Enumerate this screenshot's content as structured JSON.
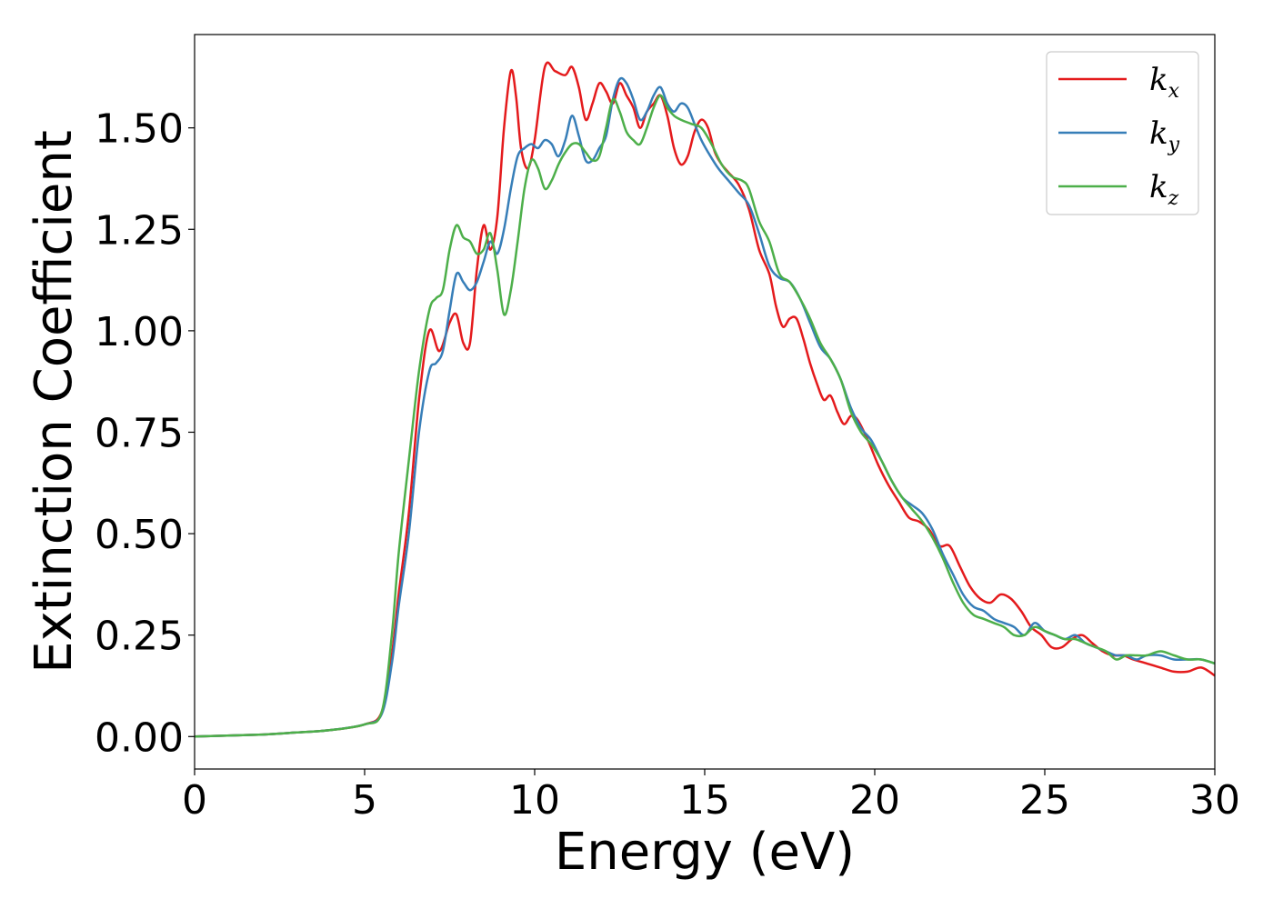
{
  "chart_data": {
    "type": "line",
    "xlabel": "Energy (eV)",
    "ylabel": "Extinction Coefficient",
    "xlim": [
      0,
      30
    ],
    "ylim": [
      -0.08,
      1.73
    ],
    "x_ticks": [
      "0",
      "5",
      "10",
      "15",
      "20",
      "25",
      "30"
    ],
    "y_ticks": [
      "0.00",
      "0.25",
      "0.50",
      "0.75",
      "1.00",
      "1.25",
      "1.50"
    ],
    "grid": false,
    "legend_position": "top-right",
    "series": [
      {
        "name": "k_x",
        "label_base": "k",
        "label_sub": "x",
        "color": "#e41a1c",
        "points": [
          [
            0,
            0.0
          ],
          [
            2,
            0.005
          ],
          [
            3,
            0.01
          ],
          [
            4,
            0.016
          ],
          [
            5,
            0.03
          ],
          [
            5.5,
            0.06
          ],
          [
            5.8,
            0.2
          ],
          [
            6,
            0.35
          ],
          [
            6.3,
            0.55
          ],
          [
            6.6,
            0.83
          ],
          [
            6.9,
            1.0
          ],
          [
            7.2,
            0.95
          ],
          [
            7.5,
            1.02
          ],
          [
            7.7,
            1.04
          ],
          [
            7.9,
            0.97
          ],
          [
            8.1,
            0.97
          ],
          [
            8.3,
            1.15
          ],
          [
            8.5,
            1.26
          ],
          [
            8.7,
            1.2
          ],
          [
            8.9,
            1.28
          ],
          [
            9.1,
            1.5
          ],
          [
            9.3,
            1.64
          ],
          [
            9.45,
            1.58
          ],
          [
            9.6,
            1.45
          ],
          [
            9.8,
            1.4
          ],
          [
            10,
            1.47
          ],
          [
            10.3,
            1.65
          ],
          [
            10.6,
            1.64
          ],
          [
            10.9,
            1.63
          ],
          [
            11.1,
            1.65
          ],
          [
            11.3,
            1.6
          ],
          [
            11.5,
            1.52
          ],
          [
            11.7,
            1.56
          ],
          [
            11.9,
            1.61
          ],
          [
            12.1,
            1.59
          ],
          [
            12.3,
            1.56
          ],
          [
            12.5,
            1.61
          ],
          [
            12.7,
            1.58
          ],
          [
            12.9,
            1.55
          ],
          [
            13.1,
            1.5
          ],
          [
            13.3,
            1.54
          ],
          [
            13.5,
            1.56
          ],
          [
            13.7,
            1.58
          ],
          [
            13.9,
            1.53
          ],
          [
            14.1,
            1.45
          ],
          [
            14.3,
            1.41
          ],
          [
            14.5,
            1.43
          ],
          [
            14.7,
            1.49
          ],
          [
            14.9,
            1.52
          ],
          [
            15.1,
            1.5
          ],
          [
            15.3,
            1.44
          ],
          [
            15.5,
            1.41
          ],
          [
            15.7,
            1.39
          ],
          [
            16,
            1.36
          ],
          [
            16.3,
            1.3
          ],
          [
            16.6,
            1.2
          ],
          [
            16.9,
            1.14
          ],
          [
            17.1,
            1.06
          ],
          [
            17.3,
            1.01
          ],
          [
            17.5,
            1.03
          ],
          [
            17.7,
            1.03
          ],
          [
            17.9,
            0.98
          ],
          [
            18.1,
            0.92
          ],
          [
            18.3,
            0.87
          ],
          [
            18.5,
            0.83
          ],
          [
            18.7,
            0.84
          ],
          [
            18.9,
            0.8
          ],
          [
            19.1,
            0.77
          ],
          [
            19.3,
            0.79
          ],
          [
            19.5,
            0.78
          ],
          [
            19.8,
            0.73
          ],
          [
            20.1,
            0.67
          ],
          [
            20.4,
            0.62
          ],
          [
            20.7,
            0.58
          ],
          [
            21,
            0.54
          ],
          [
            21.3,
            0.53
          ],
          [
            21.6,
            0.51
          ],
          [
            21.9,
            0.47
          ],
          [
            22.2,
            0.47
          ],
          [
            22.5,
            0.42
          ],
          [
            22.8,
            0.37
          ],
          [
            23.1,
            0.34
          ],
          [
            23.4,
            0.33
          ],
          [
            23.7,
            0.35
          ],
          [
            24,
            0.34
          ],
          [
            24.3,
            0.31
          ],
          [
            24.6,
            0.27
          ],
          [
            24.9,
            0.25
          ],
          [
            25.2,
            0.22
          ],
          [
            25.5,
            0.22
          ],
          [
            25.8,
            0.24
          ],
          [
            26.1,
            0.25
          ],
          [
            26.4,
            0.23
          ],
          [
            26.7,
            0.21
          ],
          [
            27,
            0.2
          ],
          [
            27.3,
            0.2
          ],
          [
            27.6,
            0.19
          ],
          [
            28,
            0.18
          ],
          [
            28.4,
            0.17
          ],
          [
            28.8,
            0.16
          ],
          [
            29.2,
            0.16
          ],
          [
            29.6,
            0.17
          ],
          [
            30,
            0.15
          ]
        ]
      },
      {
        "name": "k_y",
        "label_base": "k",
        "label_sub": "y",
        "color": "#377eb8",
        "points": [
          [
            0,
            0.0
          ],
          [
            2,
            0.005
          ],
          [
            3,
            0.01
          ],
          [
            4,
            0.016
          ],
          [
            5,
            0.03
          ],
          [
            5.5,
            0.055
          ],
          [
            5.8,
            0.18
          ],
          [
            6,
            0.32
          ],
          [
            6.3,
            0.5
          ],
          [
            6.6,
            0.75
          ],
          [
            6.9,
            0.9
          ],
          [
            7.1,
            0.92
          ],
          [
            7.3,
            0.95
          ],
          [
            7.5,
            1.05
          ],
          [
            7.7,
            1.14
          ],
          [
            7.9,
            1.12
          ],
          [
            8.1,
            1.1
          ],
          [
            8.3,
            1.12
          ],
          [
            8.5,
            1.17
          ],
          [
            8.7,
            1.22
          ],
          [
            8.9,
            1.19
          ],
          [
            9.1,
            1.25
          ],
          [
            9.3,
            1.35
          ],
          [
            9.5,
            1.43
          ],
          [
            9.7,
            1.45
          ],
          [
            9.9,
            1.46
          ],
          [
            10.1,
            1.45
          ],
          [
            10.3,
            1.47
          ],
          [
            10.5,
            1.46
          ],
          [
            10.7,
            1.43
          ],
          [
            10.9,
            1.47
          ],
          [
            11.1,
            1.53
          ],
          [
            11.3,
            1.48
          ],
          [
            11.5,
            1.42
          ],
          [
            11.7,
            1.42
          ],
          [
            11.9,
            1.45
          ],
          [
            12.1,
            1.48
          ],
          [
            12.3,
            1.57
          ],
          [
            12.5,
            1.62
          ],
          [
            12.7,
            1.61
          ],
          [
            12.9,
            1.57
          ],
          [
            13.1,
            1.52
          ],
          [
            13.3,
            1.54
          ],
          [
            13.5,
            1.58
          ],
          [
            13.7,
            1.6
          ],
          [
            13.9,
            1.56
          ],
          [
            14.1,
            1.54
          ],
          [
            14.3,
            1.56
          ],
          [
            14.5,
            1.55
          ],
          [
            14.7,
            1.51
          ],
          [
            14.9,
            1.47
          ],
          [
            15.1,
            1.44
          ],
          [
            15.4,
            1.4
          ],
          [
            15.7,
            1.37
          ],
          [
            16,
            1.34
          ],
          [
            16.3,
            1.31
          ],
          [
            16.6,
            1.24
          ],
          [
            16.9,
            1.16
          ],
          [
            17.2,
            1.13
          ],
          [
            17.5,
            1.12
          ],
          [
            17.8,
            1.08
          ],
          [
            18.1,
            1.02
          ],
          [
            18.4,
            0.96
          ],
          [
            18.7,
            0.93
          ],
          [
            19,
            0.88
          ],
          [
            19.3,
            0.81
          ],
          [
            19.6,
            0.76
          ],
          [
            19.9,
            0.73
          ],
          [
            20.2,
            0.68
          ],
          [
            20.5,
            0.63
          ],
          [
            20.8,
            0.59
          ],
          [
            21.1,
            0.57
          ],
          [
            21.4,
            0.55
          ],
          [
            21.7,
            0.51
          ],
          [
            22,
            0.45
          ],
          [
            22.3,
            0.4
          ],
          [
            22.6,
            0.35
          ],
          [
            22.9,
            0.32
          ],
          [
            23.2,
            0.31
          ],
          [
            23.5,
            0.29
          ],
          [
            23.8,
            0.28
          ],
          [
            24.1,
            0.27
          ],
          [
            24.4,
            0.25
          ],
          [
            24.7,
            0.28
          ],
          [
            25,
            0.26
          ],
          [
            25.3,
            0.25
          ],
          [
            25.6,
            0.24
          ],
          [
            25.9,
            0.25
          ],
          [
            26.2,
            0.23
          ],
          [
            26.5,
            0.22
          ],
          [
            26.8,
            0.21
          ],
          [
            27.1,
            0.2
          ],
          [
            27.4,
            0.2
          ],
          [
            27.7,
            0.19
          ],
          [
            28,
            0.2
          ],
          [
            28.4,
            0.2
          ],
          [
            28.8,
            0.19
          ],
          [
            29.2,
            0.19
          ],
          [
            29.6,
            0.19
          ],
          [
            30,
            0.18
          ]
        ]
      },
      {
        "name": "k_z",
        "label_base": "k",
        "label_sub": "z",
        "color": "#4daf4a",
        "points": [
          [
            0,
            0.0
          ],
          [
            2,
            0.005
          ],
          [
            3,
            0.01
          ],
          [
            4,
            0.016
          ],
          [
            5,
            0.03
          ],
          [
            5.5,
            0.06
          ],
          [
            5.8,
            0.25
          ],
          [
            6,
            0.45
          ],
          [
            6.3,
            0.68
          ],
          [
            6.6,
            0.9
          ],
          [
            6.9,
            1.05
          ],
          [
            7.1,
            1.08
          ],
          [
            7.3,
            1.1
          ],
          [
            7.5,
            1.2
          ],
          [
            7.7,
            1.26
          ],
          [
            7.9,
            1.23
          ],
          [
            8.1,
            1.22
          ],
          [
            8.3,
            1.19
          ],
          [
            8.5,
            1.2
          ],
          [
            8.7,
            1.24
          ],
          [
            8.9,
            1.15
          ],
          [
            9.1,
            1.04
          ],
          [
            9.3,
            1.1
          ],
          [
            9.5,
            1.22
          ],
          [
            9.7,
            1.35
          ],
          [
            9.9,
            1.42
          ],
          [
            10.1,
            1.4
          ],
          [
            10.3,
            1.35
          ],
          [
            10.5,
            1.37
          ],
          [
            10.7,
            1.41
          ],
          [
            10.9,
            1.44
          ],
          [
            11.1,
            1.46
          ],
          [
            11.3,
            1.46
          ],
          [
            11.5,
            1.44
          ],
          [
            11.7,
            1.42
          ],
          [
            11.9,
            1.43
          ],
          [
            12.1,
            1.5
          ],
          [
            12.3,
            1.57
          ],
          [
            12.5,
            1.54
          ],
          [
            12.7,
            1.49
          ],
          [
            12.9,
            1.47
          ],
          [
            13.1,
            1.46
          ],
          [
            13.3,
            1.5
          ],
          [
            13.5,
            1.55
          ],
          [
            13.7,
            1.58
          ],
          [
            13.9,
            1.55
          ],
          [
            14.1,
            1.53
          ],
          [
            14.3,
            1.52
          ],
          [
            14.6,
            1.51
          ],
          [
            14.9,
            1.5
          ],
          [
            15.2,
            1.46
          ],
          [
            15.5,
            1.41
          ],
          [
            15.8,
            1.38
          ],
          [
            16.1,
            1.37
          ],
          [
            16.3,
            1.35
          ],
          [
            16.6,
            1.27
          ],
          [
            16.9,
            1.22
          ],
          [
            17.2,
            1.14
          ],
          [
            17.5,
            1.12
          ],
          [
            17.8,
            1.08
          ],
          [
            18.1,
            1.03
          ],
          [
            18.4,
            0.97
          ],
          [
            18.7,
            0.93
          ],
          [
            19,
            0.88
          ],
          [
            19.3,
            0.8
          ],
          [
            19.6,
            0.75
          ],
          [
            19.9,
            0.72
          ],
          [
            20.2,
            0.68
          ],
          [
            20.5,
            0.63
          ],
          [
            20.8,
            0.59
          ],
          [
            21.1,
            0.56
          ],
          [
            21.4,
            0.53
          ],
          [
            21.7,
            0.49
          ],
          [
            22,
            0.44
          ],
          [
            22.3,
            0.38
          ],
          [
            22.6,
            0.33
          ],
          [
            22.9,
            0.3
          ],
          [
            23.2,
            0.29
          ],
          [
            23.5,
            0.28
          ],
          [
            23.8,
            0.27
          ],
          [
            24.1,
            0.25
          ],
          [
            24.4,
            0.25
          ],
          [
            24.7,
            0.27
          ],
          [
            25,
            0.26
          ],
          [
            25.3,
            0.25
          ],
          [
            25.6,
            0.24
          ],
          [
            25.9,
            0.24
          ],
          [
            26.2,
            0.23
          ],
          [
            26.5,
            0.22
          ],
          [
            26.8,
            0.21
          ],
          [
            27.1,
            0.19
          ],
          [
            27.4,
            0.2
          ],
          [
            27.7,
            0.2
          ],
          [
            28,
            0.2
          ],
          [
            28.4,
            0.21
          ],
          [
            28.8,
            0.2
          ],
          [
            29.2,
            0.19
          ],
          [
            29.6,
            0.19
          ],
          [
            30,
            0.18
          ]
        ]
      }
    ]
  }
}
